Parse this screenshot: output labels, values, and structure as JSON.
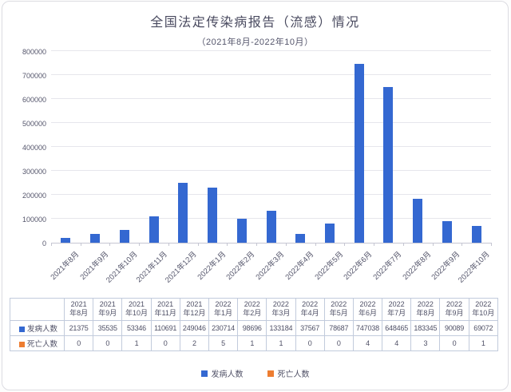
{
  "chart_data": {
    "type": "bar",
    "title": "全国法定传染病报告（流感）情况",
    "subtitle": "（2021年8月-2022年10月）",
    "categories": [
      "2021年8月",
      "2021年9月",
      "2021年10月",
      "2021年11月",
      "2021年12月",
      "2022年1月",
      "2022年2月",
      "2022年3月",
      "2022年4月",
      "2022年5月",
      "2022年6月",
      "2022年7月",
      "2022年8月",
      "2022年9月",
      "2022年10月"
    ],
    "series": [
      {
        "name": "发病人数",
        "color": "#3468D1",
        "values": [
          21375,
          35535,
          53346,
          110691,
          249046,
          230714,
          98696,
          133184,
          37567,
          78687,
          747038,
          648465,
          183345,
          90089,
          69072
        ]
      },
      {
        "name": "死亡人数",
        "color": "#ED7D31",
        "values": [
          0,
          0,
          1,
          0,
          2,
          5,
          1,
          1,
          0,
          0,
          4,
          4,
          3,
          0,
          1
        ]
      }
    ],
    "ylim": [
      0,
      800000
    ],
    "ytick_labels": [
      "0",
      "100000",
      "200000",
      "300000",
      "400000",
      "500000",
      "600000",
      "700000",
      "800000"
    ],
    "grid": true,
    "legend_position": "bottom",
    "data_table_shown": true,
    "colors": {
      "grid": "#e6e6ec",
      "axis": "#c5c6d2",
      "table_border": "#c2cbdc",
      "text": "#4f5066"
    }
  }
}
